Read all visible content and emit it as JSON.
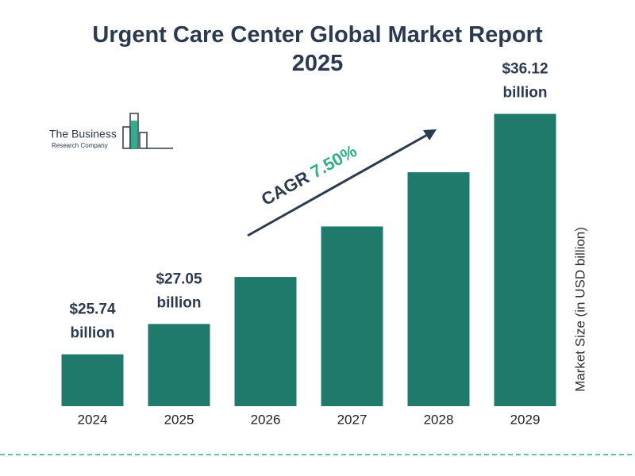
{
  "chart_data": {
    "type": "bar",
    "title": "Urgent Care Center Global Market Report 2025",
    "logo_line1": "The Business",
    "logo_line2": "Research Company",
    "y_axis_label": "Market Size (in USD billion)",
    "cagr_label": "CAGR",
    "cagr_value": "7.50%",
    "categories": [
      "2024",
      "2025",
      "2026",
      "2027",
      "2028",
      "2029"
    ],
    "values": [
      25.74,
      27.05,
      29.08,
      31.26,
      33.6,
      36.12
    ],
    "value_labels": [
      "$25.74 billion",
      "$27.05 billion",
      null,
      null,
      null,
      "$36.12 billion"
    ],
    "color": "#1f7a6b",
    "ylim": [
      23.5,
      37.2
    ]
  }
}
